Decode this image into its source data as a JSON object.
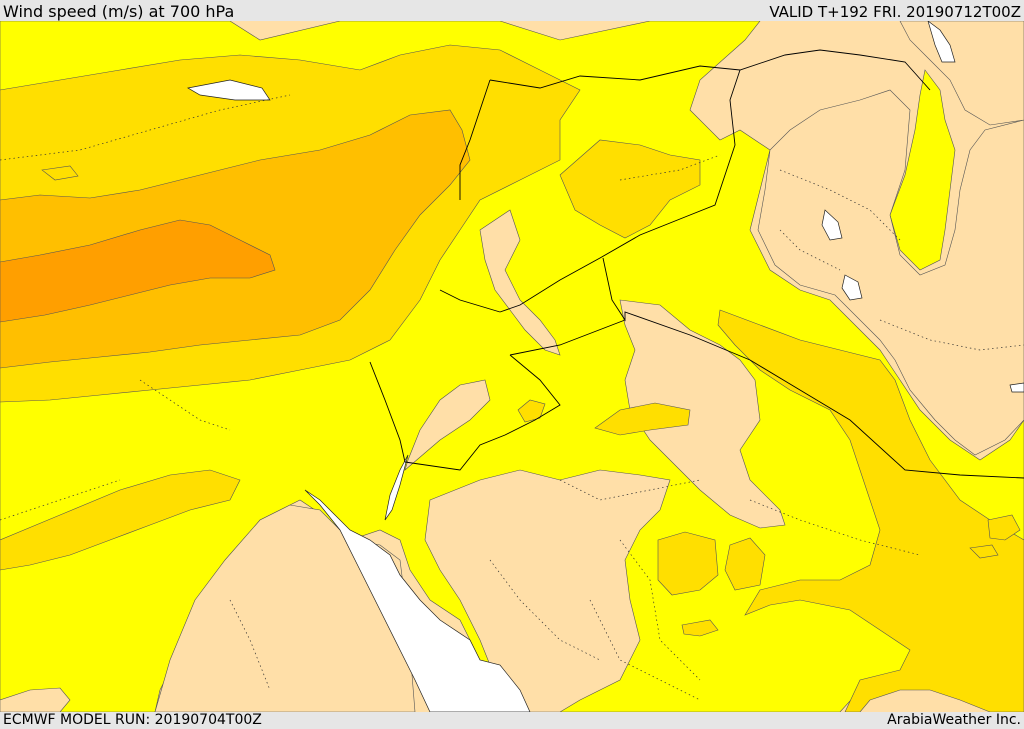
{
  "header": {
    "title": "Wind speed (m/s) at 700 hPa",
    "valid": "VALID T+192 FRI. 20190712T00Z"
  },
  "footer": {
    "model_run": "ECMWF MODEL RUN: 20190704T00Z",
    "credit": "ArabiaWeather Inc."
  },
  "colors": {
    "land_low": "#ffdfa8",
    "band_yellow": "#ffff00",
    "band_gold": "#ffdf00",
    "band_amber": "#ffbf00",
    "band_orange": "#ff9f00",
    "water": "#ffffff"
  }
}
